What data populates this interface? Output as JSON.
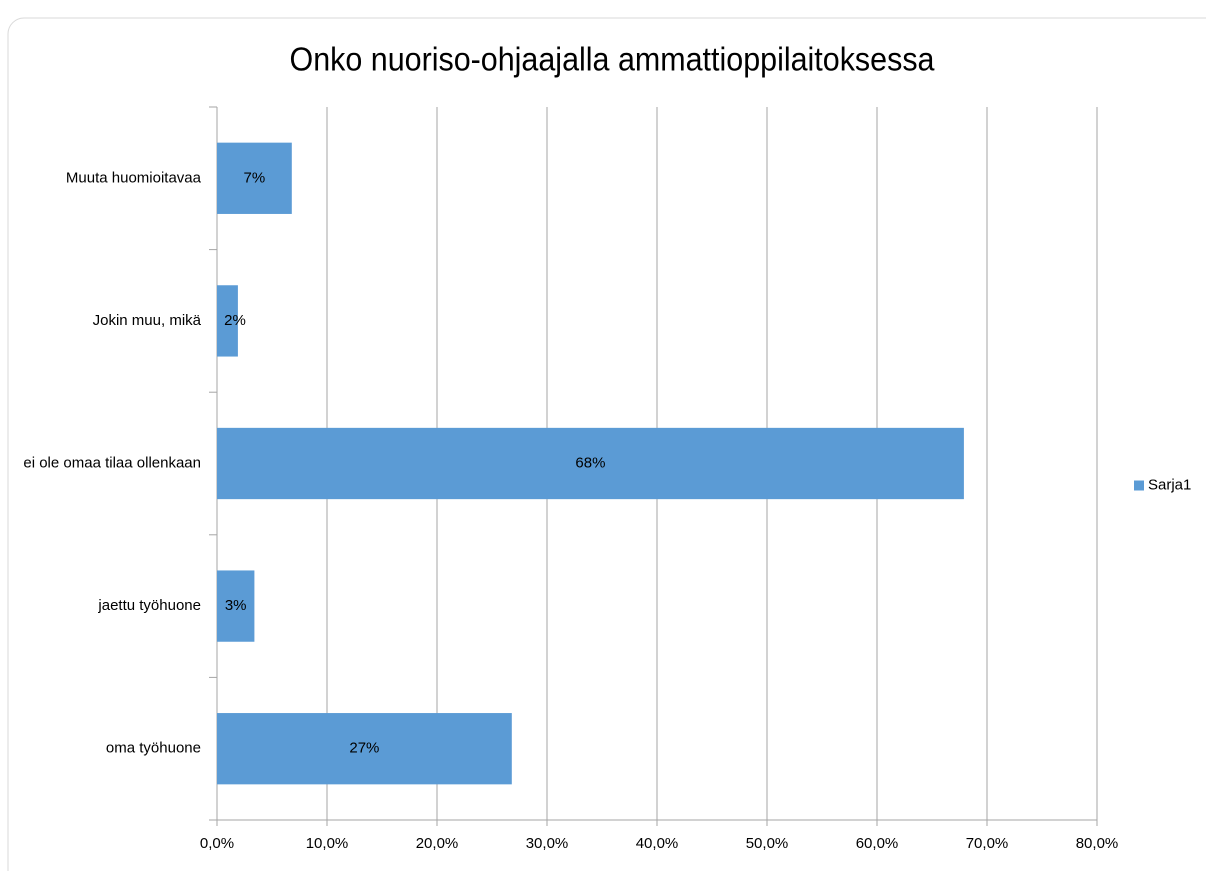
{
  "chart_data": {
    "type": "bar",
    "orientation": "horizontal",
    "title": "Onko nuoriso-ohjaajalla ammattioppilaitoksessa",
    "categories": [
      "Muuta huomioitavaa",
      "Jokin muu, mikä",
      "ei ole omaa tilaa ollenkaan",
      "jaettu työhuone",
      "oma työhuone"
    ],
    "series": [
      {
        "name": "Sarja1",
        "color": "#5b9bd5",
        "values": [
          6.8,
          1.9,
          67.9,
          3.4,
          26.8
        ],
        "value_labels": [
          "7%",
          "2%",
          "68%",
          "3%",
          "27%"
        ]
      }
    ],
    "xlim": [
      0,
      80
    ],
    "xticks": [
      {
        "value": 0,
        "label": "0,0%"
      },
      {
        "value": 10,
        "label": "10,0%"
      },
      {
        "value": 20,
        "label": "20,0%"
      },
      {
        "value": 30,
        "label": "30,0%"
      },
      {
        "value": 40,
        "label": "40,0%"
      },
      {
        "value": 50,
        "label": "50,0%"
      },
      {
        "value": 60,
        "label": "60,0%"
      },
      {
        "value": 70,
        "label": "70,0%"
      },
      {
        "value": 80,
        "label": "80,0%"
      }
    ],
    "grid": true,
    "legend": "right"
  }
}
